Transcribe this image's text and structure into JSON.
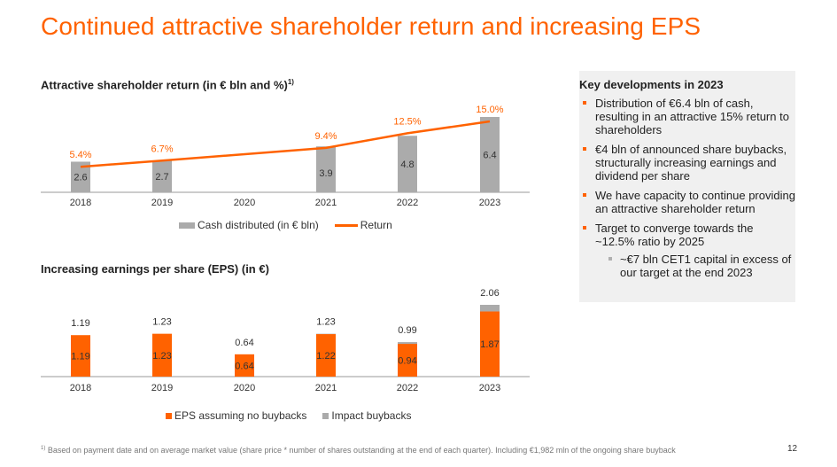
{
  "title": "Continued attractive shareholder return and increasing EPS",
  "chart1_heading": "Attractive shareholder return (in € bln and %)",
  "chart1_heading_note": "1)",
  "chart2_heading": "Increasing earnings per share (EPS) (in €)",
  "chart_data": [
    {
      "type": "bar",
      "categories": [
        "2018",
        "2019",
        "2020",
        "2021",
        "2022",
        "2023"
      ],
      "series": [
        {
          "name": "Cash distributed (in € bln)",
          "kind": "bar",
          "values": [
            2.6,
            2.7,
            null,
            3.9,
            4.8,
            6.4
          ],
          "labels": [
            "2.6",
            "2.7",
            "",
            "3.9",
            "4.8",
            "6.4"
          ]
        },
        {
          "name": "Return",
          "kind": "line",
          "values": [
            5.4,
            6.7,
            null,
            9.4,
            12.5,
            15.0
          ],
          "labels": [
            "5.4%",
            "6.7%",
            "",
            "9.4%",
            "12.5%",
            "15.0%"
          ]
        }
      ],
      "colors": {
        "bar": "#ABABAB",
        "line": "#FF6200"
      }
    },
    {
      "type": "bar",
      "stacked": true,
      "categories": [
        "2018",
        "2019",
        "2020",
        "2021",
        "2022",
        "2023"
      ],
      "series": [
        {
          "name": "EPS assuming no buybacks",
          "values": [
            1.19,
            1.23,
            0.64,
            1.22,
            0.94,
            1.87
          ],
          "labels": [
            "1.19",
            "1.23",
            "0.64",
            "1.22",
            "0.94",
            "1.87"
          ]
        },
        {
          "name": "Impact buybacks",
          "values": [
            0,
            0,
            0,
            0.01,
            0.05,
            0.19
          ]
        }
      ],
      "totals": [
        1.19,
        1.23,
        0.64,
        1.23,
        0.99,
        2.06
      ],
      "total_labels": [
        "1.19",
        "1.23",
        "0.64",
        "1.23",
        "0.99",
        "2.06"
      ],
      "colors": {
        "eps": "#FF6200",
        "impact": "#ABABAB"
      }
    }
  ],
  "legend1": {
    "bar": "Cash distributed (in € bln)",
    "line": "Return"
  },
  "legend2": {
    "eps": "EPS assuming no buybacks",
    "impact": "Impact buybacks"
  },
  "panel": {
    "title": "Key developments in 2023",
    "bullets": [
      "Distribution of €6.4 bln of cash, resulting in an attractive 15% return to shareholders",
      "€4 bln of announced share buybacks, structurally increasing earnings and dividend per share",
      "We have capacity to continue providing an attractive shareholder return",
      "Target to converge towards the ~12.5% ratio by 2025"
    ],
    "sub_bullet": "~€7 bln CET1 capital in excess of our target at the end 2023"
  },
  "footnote_marker": "1)",
  "footnote": "Based on payment date and on average market value (share price * number of shares outstanding at the end of each quarter). Including €1,982 mln of the ongoing share buyback",
  "page_number": "12"
}
